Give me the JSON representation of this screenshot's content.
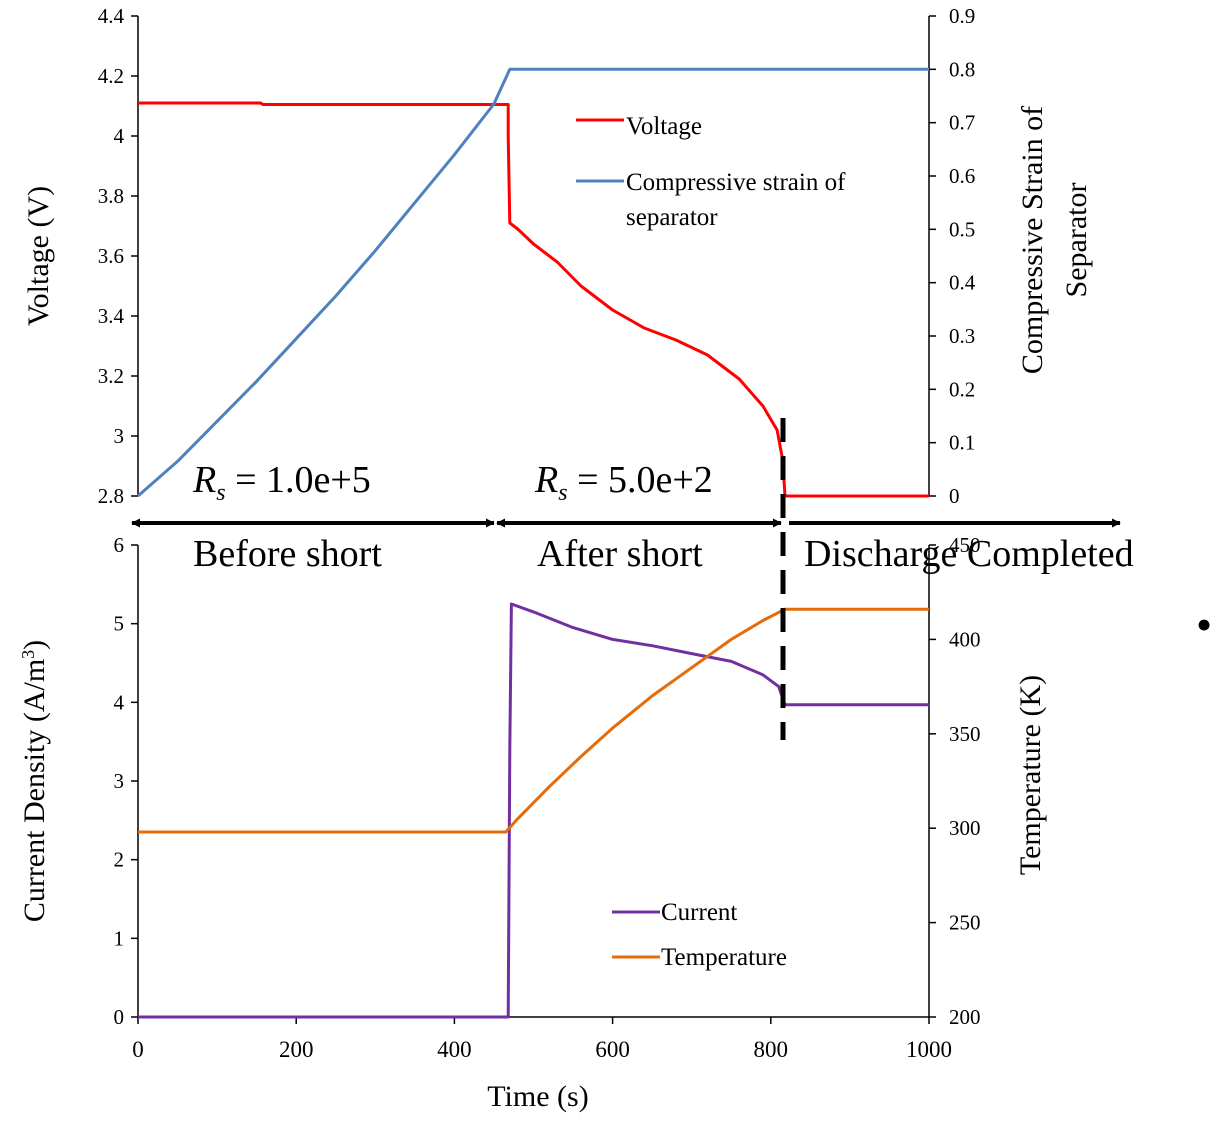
{
  "chart_data": [
    {
      "type": "line",
      "ylabel": "Voltage (V)",
      "y2label_lines": [
        "Compressive Strain of",
        "Separator"
      ],
      "ylim": [
        2.8,
        4.4
      ],
      "y2lim": [
        0,
        0.9
      ],
      "xlim": [
        0,
        1000
      ],
      "y_ticks": [
        "2.8",
        "3",
        "3.2",
        "3.4",
        "3.6",
        "3.8",
        "4",
        "4.2",
        "4.4"
      ],
      "y2_ticks": [
        "0",
        "0.1",
        "0.2",
        "0.3",
        "0.4",
        "0.5",
        "0.6",
        "0.7",
        "0.8",
        "0.9"
      ],
      "legend": {
        "placement": "upper-middle"
      },
      "series": [
        {
          "name": "Voltage",
          "axis": "left",
          "color": "#ff0000",
          "points": [
            [
              0,
              4.11
            ],
            [
              155,
              4.11
            ],
            [
              158,
              4.105
            ],
            [
              465,
              4.105
            ],
            [
              468,
              4.105
            ],
            [
              468,
              4.0
            ],
            [
              470,
              3.71
            ],
            [
              480,
              3.69
            ],
            [
              500,
              3.64
            ],
            [
              530,
              3.58
            ],
            [
              560,
              3.5
            ],
            [
              600,
              3.42
            ],
            [
              640,
              3.36
            ],
            [
              680,
              3.32
            ],
            [
              720,
              3.27
            ],
            [
              760,
              3.19
            ],
            [
              790,
              3.1
            ],
            [
              808,
              3.02
            ],
            [
              815,
              2.92
            ],
            [
              818,
              2.8
            ],
            [
              1000,
              2.8
            ]
          ]
        },
        {
          "name": "Compressive strain of separator",
          "axis": "right",
          "color": "#4f81bd",
          "points": [
            [
              0,
              0.0
            ],
            [
              50,
              0.065
            ],
            [
              100,
              0.14
            ],
            [
              150,
              0.215
            ],
            [
              200,
              0.295
            ],
            [
              250,
              0.375
            ],
            [
              300,
              0.46
            ],
            [
              350,
              0.55
            ],
            [
              400,
              0.64
            ],
            [
              450,
              0.735
            ],
            [
              470,
              0.8
            ],
            [
              1000,
              0.8
            ]
          ]
        }
      ]
    },
    {
      "type": "line",
      "xlabel": "Time (s)",
      "ylabel_main": "Current Density (A/m",
      "ylabel_sup": "3",
      "ylabel_close": ")",
      "y2label": "Temperature (K)",
      "xlim": [
        0,
        1000
      ],
      "ylim": [
        0,
        6
      ],
      "y2lim": [
        200,
        450
      ],
      "x_ticks": [
        "0",
        "200",
        "400",
        "600",
        "800",
        "1000"
      ],
      "y_ticks": [
        "0",
        "1",
        "2",
        "3",
        "4",
        "5",
        "6"
      ],
      "y2_ticks": [
        "200",
        "250",
        "300",
        "350",
        "400",
        "450"
      ],
      "legend": {
        "placement": "bottom-middle"
      },
      "series": [
        {
          "name": "Current",
          "axis": "left",
          "color": "#7030a0",
          "points": [
            [
              0,
              0
            ],
            [
              468,
              0
            ],
            [
              470,
              3.4
            ],
            [
              472,
              5.25
            ],
            [
              500,
              5.15
            ],
            [
              550,
              4.95
            ],
            [
              600,
              4.8
            ],
            [
              650,
              4.72
            ],
            [
              700,
              4.62
            ],
            [
              750,
              4.52
            ],
            [
              790,
              4.35
            ],
            [
              810,
              4.2
            ],
            [
              818,
              3.97
            ],
            [
              1000,
              3.97
            ]
          ]
        },
        {
          "name": "Temperature",
          "axis": "right",
          "color": "#e46c0a",
          "points": [
            [
              0,
              298
            ],
            [
              465,
              298
            ],
            [
              480,
              305
            ],
            [
              520,
              322
            ],
            [
              560,
              338
            ],
            [
              600,
              353
            ],
            [
              650,
              370
            ],
            [
              700,
              385
            ],
            [
              750,
              400
            ],
            [
              790,
              410
            ],
            [
              818,
              416
            ],
            [
              1000,
              416
            ]
          ]
        }
      ]
    }
  ],
  "annotations": {
    "rs1_symbol": "R",
    "rs1_sub": "s",
    "rs1_value": " = 1.0e+5",
    "rs2_symbol": "R",
    "rs2_sub": "s",
    "rs2_value": " = 5.0e+2",
    "region_before": "Before short",
    "region_after": "After short",
    "region_done": "Discharge Completed",
    "bullet": "•"
  }
}
